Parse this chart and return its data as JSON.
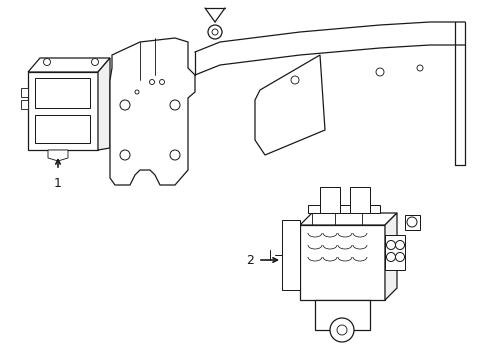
{
  "background_color": "#ffffff",
  "line_color": "#1a1a1a",
  "line_width": 0.9,
  "label_1": "1",
  "label_2": "2",
  "label_fontsize": 9,
  "fig_width": 4.89,
  "fig_height": 3.6,
  "dpi": 100
}
